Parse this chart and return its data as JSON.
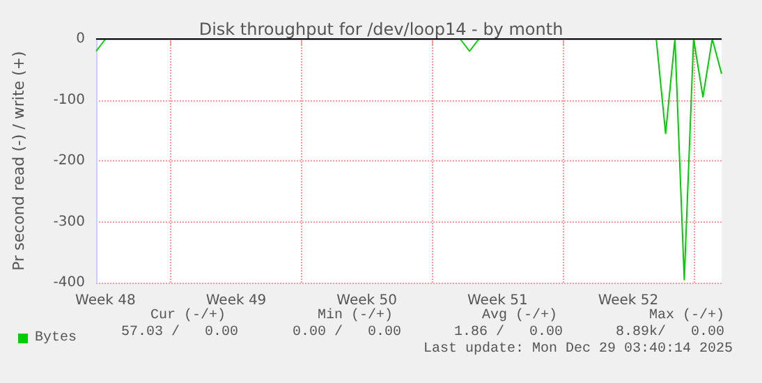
{
  "chart_data": {
    "type": "line",
    "title": "Disk throughput for /dev/loop14 - by month",
    "ylabel": "Pr second read (-) / write (+)",
    "categories": [
      null,
      "Week 48",
      null,
      null,
      null,
      null,
      null,
      null,
      null,
      null,
      null,
      null,
      null,
      null,
      null,
      "Week 49",
      null,
      null,
      null,
      null,
      null,
      null,
      null,
      null,
      null,
      null,
      null,
      null,
      null,
      "Week 50",
      null,
      null,
      null,
      null,
      null,
      null,
      null,
      null,
      null,
      null,
      null,
      null,
      null,
      "Week 51",
      null,
      null,
      null,
      null,
      null,
      null,
      null,
      null,
      null,
      null,
      null,
      null,
      null,
      "Week 52",
      null,
      null,
      null,
      null,
      null,
      null,
      null,
      null,
      null,
      null
    ],
    "ylim": [
      -400,
      0
    ],
    "yticks": [
      -400,
      -300,
      -200,
      -100,
      0
    ],
    "grid": true,
    "legend": "bottom left",
    "marker": "none",
    "line_style": "solid",
    "series": [
      {
        "name": "Bytes",
        "color": "#00cc00",
        "values": [
          -20,
          0,
          null,
          null,
          null,
          null,
          null,
          null,
          null,
          null,
          null,
          null,
          null,
          null,
          null,
          null,
          null,
          null,
          null,
          null,
          null,
          null,
          null,
          null,
          null,
          null,
          null,
          null,
          null,
          null,
          null,
          null,
          null,
          null,
          null,
          null,
          null,
          null,
          null,
          0,
          -20,
          0,
          null,
          null,
          null,
          null,
          null,
          null,
          null,
          null,
          null,
          null,
          null,
          null,
          null,
          null,
          null,
          null,
          null,
          null,
          0,
          -155,
          0,
          -395,
          0,
          -95,
          0,
          -57
        ]
      },
      {
        "color": "#000000",
        "values": [
          0,
          0,
          0,
          0,
          0,
          0,
          0,
          0,
          0,
          0,
          0,
          0,
          0,
          0,
          0,
          0,
          0,
          0,
          0,
          0,
          0,
          0,
          0,
          0,
          0,
          0,
          0,
          0,
          0,
          0,
          0,
          0,
          0,
          0,
          0,
          0,
          0,
          0,
          0,
          0,
          0,
          0,
          0,
          0,
          0,
          0,
          0,
          0,
          0,
          0,
          0,
          0,
          0,
          0,
          0,
          0,
          0,
          0,
          0,
          0,
          0,
          0,
          0,
          0,
          0,
          0,
          0,
          0
        ]
      }
    ],
    "annotations": [
      "Cur (-/+)",
      "Min (-/+)",
      "Avg (-/+)",
      "Max (-/+)",
      "57.03 /   0.00",
      "0.00 /   0.00",
      "1.86 /   0.00",
      "8.89k/   0.00",
      "Last update: Mon Dec 29 03:40:14 2025"
    ]
  }
}
